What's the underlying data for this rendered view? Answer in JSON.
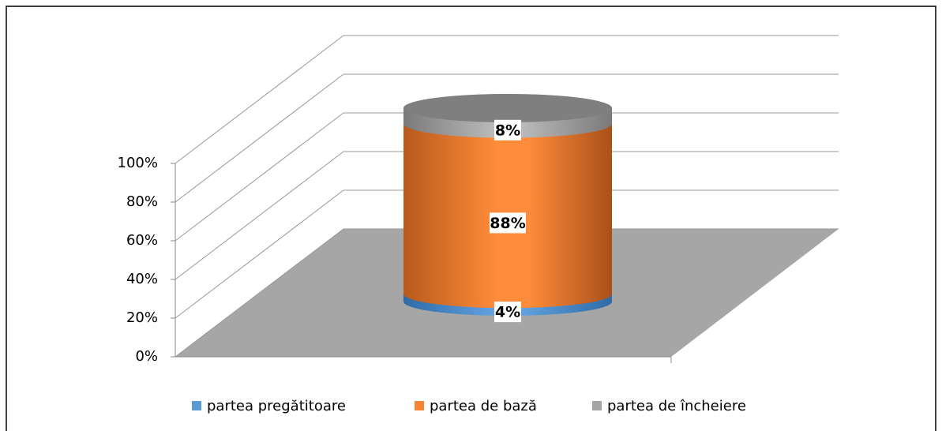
{
  "chart_data": {
    "type": "bar",
    "stacked": true,
    "categories": [
      null
    ],
    "series": [
      {
        "name": "partea pregătitoare",
        "color": "#5b9bd5",
        "values": [
          4
        ],
        "value_labels": [
          "4%"
        ]
      },
      {
        "name": "partea de bază",
        "color": "#f58535",
        "values": [
          88
        ],
        "value_labels": [
          "88%"
        ]
      },
      {
        "name": "partea de încheiere",
        "color": "#a5a5a5",
        "values": [
          8
        ],
        "value_labels": [
          "8%"
        ]
      }
    ],
    "ylim": [
      0,
      100
    ],
    "yticks": [
      {
        "value": 0,
        "label": "0%"
      },
      {
        "value": 20,
        "label": "20%"
      },
      {
        "value": 40,
        "label": "40%"
      },
      {
        "value": 60,
        "label": "60%"
      },
      {
        "value": 80,
        "label": "80%"
      },
      {
        "value": 100,
        "label": "100%"
      }
    ],
    "grid": true,
    "legend": "bottom"
  }
}
